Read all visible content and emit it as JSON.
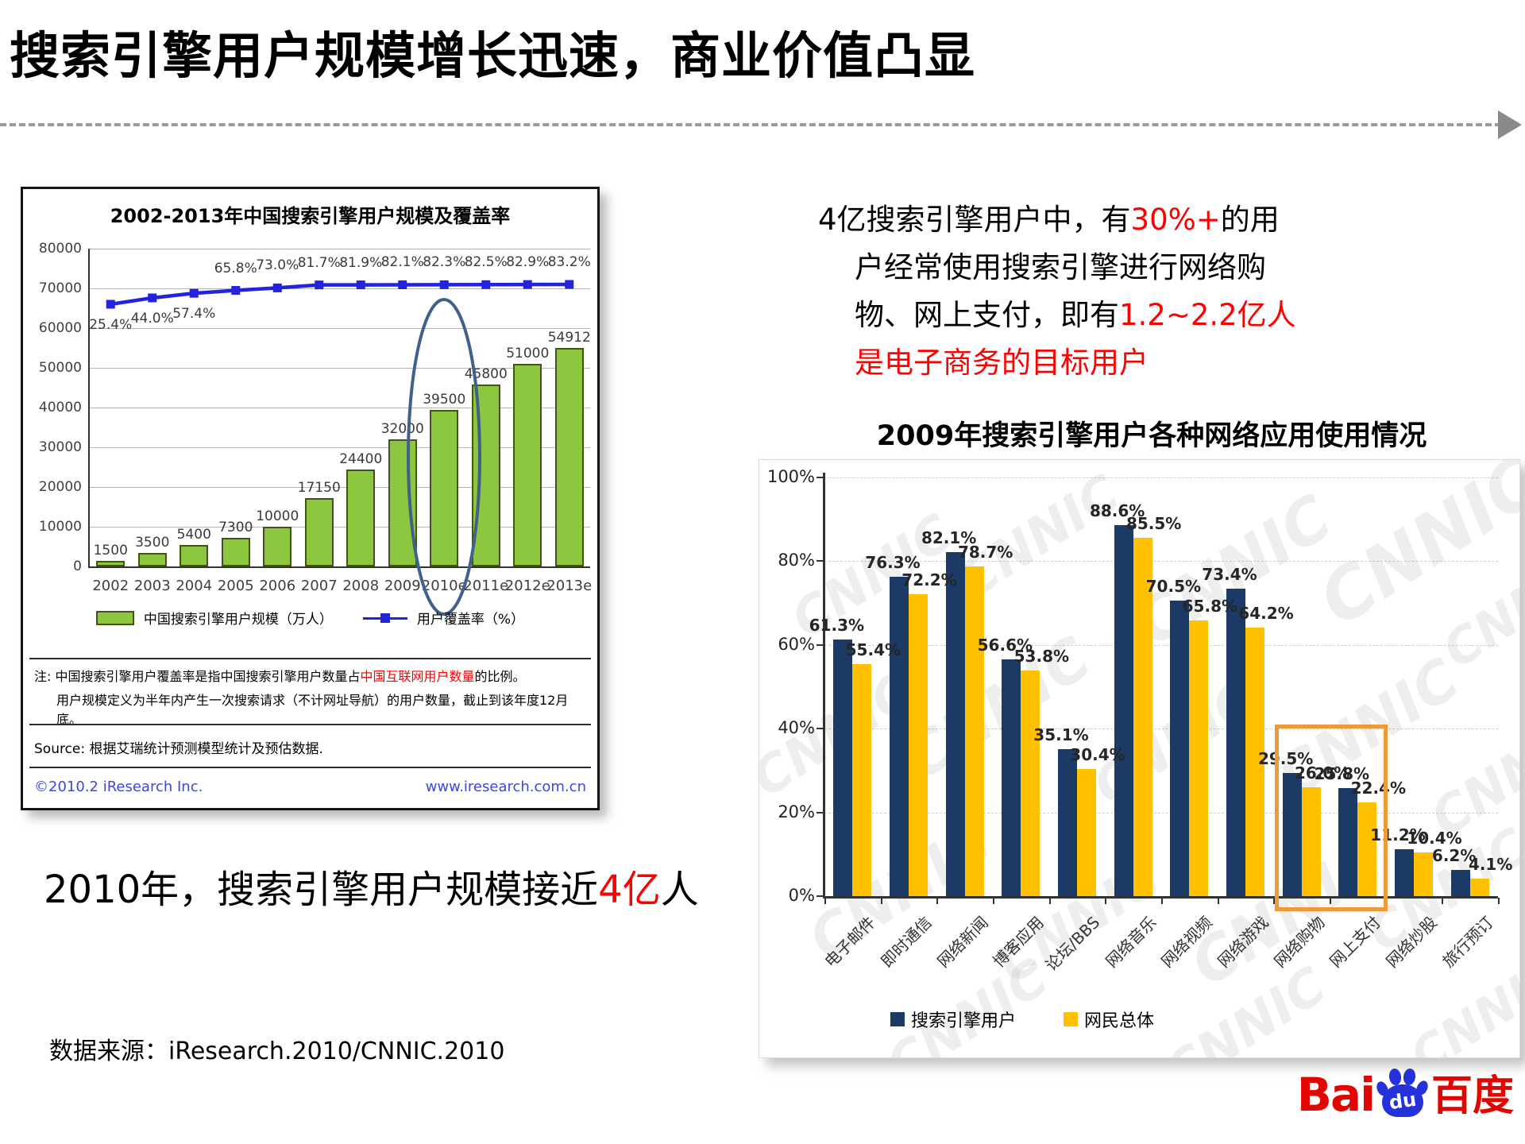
{
  "slide": {
    "title": "搜索引擎用户规模增长迅速，商业价值凸显",
    "data_source": "数据来源：iResearch.2010/CNNIC.2010"
  },
  "colors": {
    "red": "#FF0000",
    "green_bar": "#8DC63F",
    "line_blue": "#2323DE",
    "navy": "#1B3A66",
    "gold": "#FFC000",
    "link_blue": "#3A46E8",
    "orange_box": "#EC9B3B",
    "ellipse_blue": "#3F618C"
  },
  "insight": {
    "lines": [
      [
        {
          "t": "4亿搜索引擎用户中，有"
        },
        {
          "t": "30%+",
          "red": true
        },
        {
          "t": "的用"
        }
      ],
      [
        {
          "t": "户经常使用搜索引擎进行网络购"
        }
      ],
      [
        {
          "t": "物、网上支付，即有"
        },
        {
          "t": "1.2~2.2亿人",
          "red": true
        }
      ],
      [
        {
          "t": "是电子商务的目标用户",
          "red": true
        }
      ]
    ]
  },
  "statement": [
    {
      "t": "2010年，搜索引擎用户规模接近"
    },
    {
      "t": "4亿",
      "red": true
    },
    {
      "t": "人"
    }
  ],
  "logo": {
    "bai": "Bai",
    "du": "du",
    "cn": "百度"
  },
  "chart_data": [
    {
      "type": "bar",
      "title": "2002-2013年中国搜索引擎用户规模及覆盖率",
      "categories": [
        "2002",
        "2003",
        "2004",
        "2005",
        "2006",
        "2007",
        "2008",
        "2009",
        "2010e",
        "2011e",
        "2012e",
        "2013e"
      ],
      "bar_series": {
        "name": "中国搜索引擎用户规模（万人）",
        "color": "#8DC63F",
        "values": [
          1500,
          3500,
          5400,
          7300,
          10000,
          17150,
          24400,
          32000,
          39500,
          45800,
          51000,
          54912
        ]
      },
      "line_series": {
        "name": "用户覆盖率（%）",
        "color": "#2323DE",
        "values": [
          25.4,
          44.0,
          57.4,
          65.8,
          73.0,
          81.7,
          81.9,
          82.1,
          82.3,
          82.5,
          82.9,
          83.2
        ]
      },
      "ylim": [
        0,
        80000
      ],
      "yticks": [
        0,
        10000,
        20000,
        30000,
        40000,
        50000,
        60000,
        70000,
        80000
      ],
      "grid": true,
      "legend_position": "bottom",
      "annotation_ellipse_category": "2010e",
      "notes": {
        "line1": [
          {
            "t": "注: 中国搜索引擎用户覆盖率是指中国搜索引擎用户数量占"
          },
          {
            "t": "中国互联网用户数量",
            "red": true
          },
          {
            "t": "的比例。"
          }
        ],
        "line2": "用户规模定义为半年内产生一次搜索请求（不计网址导航）的用户数量，截止到该年度12月底。",
        "source": "Source: 根据艾瑞统计预测模型统计及预估数据."
      },
      "footer": {
        "copyright": "©2010.2 iResearch Inc.",
        "url": "www.iresearch.com.cn"
      }
    },
    {
      "type": "bar",
      "title": "2009年搜索引擎用户各种网络应用使用情况",
      "categories": [
        "电子邮件",
        "即时通信",
        "网络新闻",
        "博客应用",
        "论坛/BBS",
        "网络音乐",
        "网络视频",
        "网络游戏",
        "网络购物",
        "网上支付",
        "网络炒股",
        "旅行预订"
      ],
      "series": [
        {
          "name": "搜索引擎用户",
          "color": "#1B3A66",
          "values": [
            61.3,
            76.3,
            82.1,
            56.6,
            35.1,
            88.6,
            70.5,
            73.4,
            29.5,
            25.8,
            11.2,
            6.2
          ]
        },
        {
          "name": "网民总体",
          "color": "#FFC000",
          "values": [
            55.4,
            72.2,
            78.7,
            53.8,
            30.4,
            85.5,
            65.8,
            64.2,
            26.0,
            22.4,
            10.4,
            4.1
          ]
        }
      ],
      "ylim": [
        0,
        100
      ],
      "yticks": [
        0,
        20,
        40,
        60,
        80,
        100
      ],
      "grid": true,
      "legend_position": "bottom",
      "highlight_box_categories": [
        "网络购物",
        "网上支付"
      ],
      "watermark": "CNNIC"
    }
  ]
}
